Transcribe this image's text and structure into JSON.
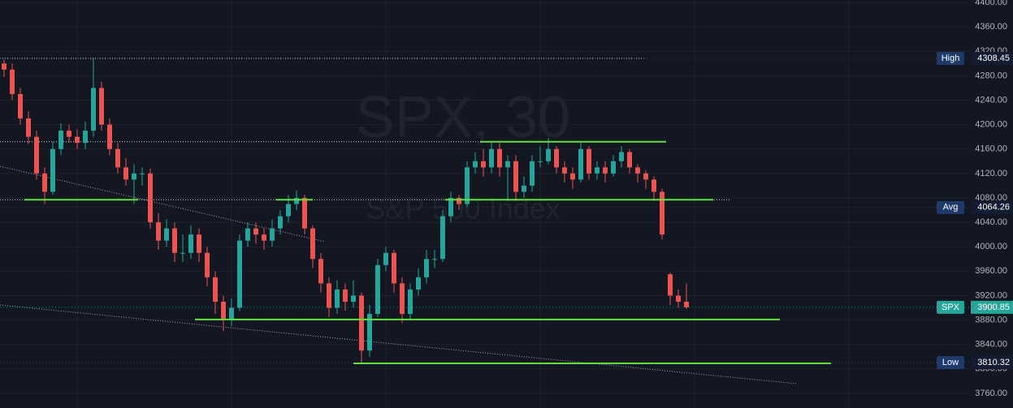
{
  "chart_data": {
    "type": "candlestick",
    "title": "SPX, 30",
    "subtitle": "S&P 500 Index",
    "colors": {
      "up": "#26a69a",
      "down": "#ef5350",
      "level": "#5de33a",
      "trend": "#c8cad0"
    },
    "grid": true,
    "ylim": [
      3736,
      4404
    ],
    "yticks": [
      {
        "value": 3760,
        "label": "3760.00"
      },
      {
        "value": 3800,
        "label": "3800.00"
      },
      {
        "value": 3840,
        "label": "3840.00"
      },
      {
        "value": 3880,
        "label": "3880.00"
      },
      {
        "value": 3920,
        "label": "3920.00"
      },
      {
        "value": 3960,
        "label": "3960.00"
      },
      {
        "value": 4000,
        "label": "4000.00"
      },
      {
        "value": 4040,
        "label": "4040.00"
      },
      {
        "value": 4080,
        "label": "4080.00"
      },
      {
        "value": 4120,
        "label": "4120.00"
      },
      {
        "value": 4160,
        "label": "4160.00"
      },
      {
        "value": 4200,
        "label": "4200.00"
      },
      {
        "value": 4240,
        "label": "4240.00"
      },
      {
        "value": 4280,
        "label": "4280.00"
      },
      {
        "value": 4320,
        "label": "4320.00"
      },
      {
        "value": 4360,
        "label": "4360.00"
      },
      {
        "value": 4400,
        "label": "4400.00"
      }
    ],
    "open": [
      4300,
      4290,
      4250,
      4210,
      4180,
      4120,
      4090,
      4160,
      4190,
      4180,
      4170,
      4190,
      4260,
      4200,
      4160,
      4130,
      4110,
      4120,
      4120,
      4040,
      4010,
      4030,
      3990,
      3990,
      4020,
      3990,
      3950,
      3910,
      3880,
      3900,
      4010,
      4030,
      4020,
      4010,
      4030,
      4050,
      4070,
      4080,
      4030,
      3980,
      3940,
      3900,
      3930,
      3910,
      3920,
      3830,
      3890,
      3970,
      3990,
      3940,
      3890,
      3930,
      3950,
      3980,
      3980,
      4050,
      4080,
      4070,
      4130,
      4140,
      4130,
      4160,
      4130,
      4140,
      4090,
      4100,
      4140,
      4140,
      4160,
      4130,
      4120,
      4110,
      4160,
      4120,
      4130,
      4120,
      4140,
      4155,
      4130,
      4120,
      4110,
      4090,
      3955,
      3920,
      3910
    ],
    "high": [
      4306,
      4300,
      4260,
      4222,
      4190,
      4130,
      4172,
      4202,
      4200,
      4192,
      4205,
      4308.45,
      4270,
      4210,
      4170,
      4145,
      4135,
      4130,
      4128,
      4055,
      4045,
      4040,
      4020,
      4035,
      4030,
      4000,
      3960,
      3920,
      3915,
      4020,
      4040,
      4040,
      4030,
      4045,
      4060,
      4085,
      4092,
      4085,
      4035,
      3990,
      3950,
      3945,
      3940,
      3945,
      3925,
      3905,
      3980,
      4000,
      3995,
      3950,
      3940,
      3965,
      3995,
      3995,
      4060,
      4090,
      4085,
      4140,
      4155,
      4160,
      4172,
      4170,
      4150,
      4150,
      4115,
      4150,
      4165,
      4178,
      4165,
      4140,
      4130,
      4172,
      4165,
      4140,
      4140,
      4150,
      4165,
      4160,
      4135,
      4125,
      4115,
      4095,
      3958,
      3930,
      3940
    ],
    "low": [
      4278,
      4240,
      4200,
      4168,
      4110,
      4070,
      4085,
      4150,
      4170,
      4160,
      4160,
      4180,
      4190,
      4150,
      4120,
      4100,
      4070,
      4100,
      4030,
      3995,
      4000,
      3975,
      3975,
      3980,
      3975,
      3935,
      3890,
      3862,
      3870,
      3895,
      4000,
      4005,
      3995,
      4000,
      4020,
      4040,
      4060,
      4020,
      3965,
      3925,
      3885,
      3890,
      3895,
      3900,
      3810.32,
      3820,
      3885,
      3960,
      3925,
      3875,
      3880,
      3920,
      3940,
      3965,
      3975,
      4040,
      4060,
      4065,
      4120,
      4115,
      4120,
      4115,
      4075,
      4075,
      4080,
      4090,
      4130,
      4135,
      4120,
      4105,
      4095,
      4105,
      4110,
      4110,
      4105,
      4115,
      4130,
      4120,
      4105,
      4095,
      4075,
      4012,
      3905,
      3900,
      3898
    ],
    "close": [
      4290,
      4250,
      4210,
      4180,
      4120,
      4090,
      4160,
      4190,
      4180,
      4170,
      4190,
      4260,
      4200,
      4160,
      4130,
      4110,
      4120,
      4120,
      4040,
      4010,
      4030,
      3990,
      3990,
      4020,
      3990,
      3950,
      3910,
      3880,
      3900,
      4010,
      4030,
      4020,
      4010,
      4030,
      4050,
      4070,
      4080,
      4030,
      3980,
      3940,
      3900,
      3930,
      3910,
      3920,
      3830,
      3890,
      3970,
      3990,
      3940,
      3890,
      3930,
      3950,
      3980,
      3980,
      4050,
      4080,
      4070,
      4130,
      4140,
      4130,
      4160,
      4130,
      4140,
      4090,
      4100,
      4140,
      4140,
      4160,
      4130,
      4120,
      4110,
      4160,
      4120,
      4130,
      4120,
      4140,
      4155,
      4130,
      4120,
      4110,
      4090,
      4020,
      3920,
      3910,
      3900.85
    ],
    "levels": [
      {
        "value": 4077,
        "from": 2.5,
        "to": 16.5
      },
      {
        "value": 4077,
        "from": 33.5,
        "to": 38
      },
      {
        "value": 4077,
        "from": 54.3,
        "to": 87.3
      },
      {
        "value": 4172,
        "from": 58.6,
        "to": 81.5
      },
      {
        "value": 3881,
        "from": 23.5,
        "to": 95.5
      },
      {
        "value": 3809,
        "from": 43,
        "to": 101.8
      }
    ],
    "dotted_levels": [
      {
        "value": 4308.45,
        "from": -0.5,
        "to": 79
      },
      {
        "value": 4172,
        "from": -0.5,
        "to": 58.6
      },
      {
        "value": 4077,
        "from": -0.5,
        "to": 89.5
      }
    ],
    "trend_lines": [
      {
        "start": 4131.8,
        "end": 4008.3,
        "from": -0.5,
        "to": 39.5
      },
      {
        "start": 3904.7,
        "end": 3775.9,
        "from": -0.5,
        "to": 97.5
      }
    ],
    "price_labels": [
      {
        "label": "High",
        "value": 4308.45,
        "color": "#1e3a6b",
        "value_color": "#131c33"
      },
      {
        "label": "Avg",
        "value": 4064.26,
        "color": "#1e3a6b",
        "value_color": "#131c33"
      },
      {
        "label": "SPX",
        "value": 3900.85,
        "color": "#26a69a",
        "value_color": "#26a69a"
      },
      {
        "label": "Low",
        "value": 3810.32,
        "color": "#1e3a6b",
        "value_color": "#131c33"
      }
    ]
  }
}
